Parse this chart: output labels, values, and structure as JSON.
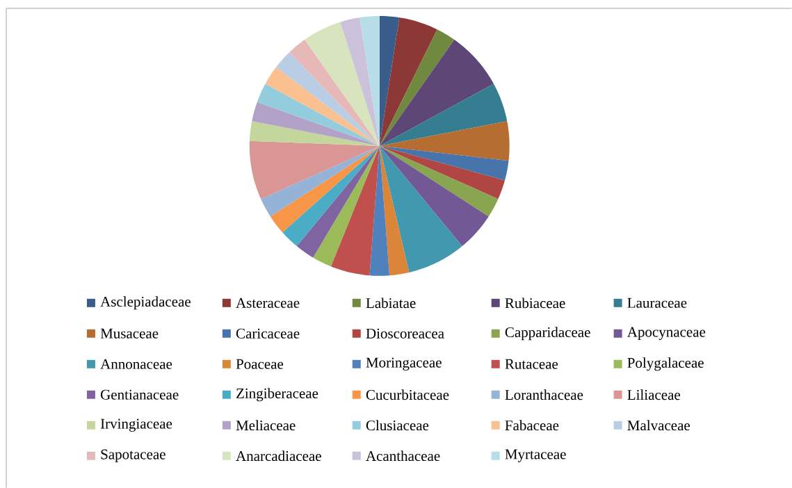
{
  "chart_data": {
    "type": "pie",
    "categories": [
      "Asclepiadaceae",
      "Asteraceae",
      "Labiatae",
      "Rubiaceae",
      "Lauraceae",
      "Musaceae",
      "Caricaceae",
      "Dioscoreacea",
      "Capparidaceae",
      "Apocynaceae",
      "Annonaceae",
      "Poaceae",
      "Moringaceae",
      "Rutaceae",
      "Polygalaceae",
      "Gentianaceae",
      "Zingiberaceae",
      "Cucurbitaceae",
      "Loranthaceae",
      "Liliaceae",
      "Irvingiaceae",
      "Meliaceae",
      "Clusiaceae",
      "Fabaceae",
      "Malvaceae",
      "Sapotaceae",
      "Anarcadiaceae",
      "Acanthaceae",
      "Myrtaceae"
    ],
    "values": [
      2.439,
      4.878,
      2.439,
      7.317,
      4.878,
      4.878,
      2.439,
      2.439,
      2.439,
      4.878,
      7.317,
      2.439,
      2.439,
      4.878,
      2.439,
      2.439,
      2.439,
      2.439,
      2.439,
      7.317,
      2.439,
      2.439,
      2.439,
      2.439,
      2.439,
      2.439,
      4.878,
      2.439,
      2.439
    ],
    "colors": [
      "#385d8a",
      "#8c3836",
      "#71893f",
      "#5c4776",
      "#357d91",
      "#b66d31",
      "#4674ab",
      "#b04643",
      "#8aa54f",
      "#735896",
      "#4298ae",
      "#db8539",
      "#4f81bd",
      "#c0504d",
      "#9bbb59",
      "#8064a2",
      "#4bacc6",
      "#f79646",
      "#95b3d7",
      "#d99694",
      "#c3d69b",
      "#b3a2c7",
      "#93cddd",
      "#fac090",
      "#b9cde5",
      "#e6b9b8",
      "#d7e4bd",
      "#ccc1da",
      "#b7dee8"
    ],
    "legend": "bottom"
  }
}
